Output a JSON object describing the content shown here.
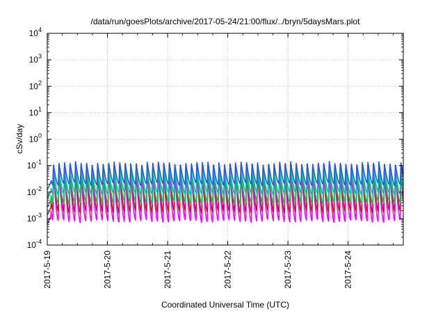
{
  "chart_data": {
    "type": "line",
    "title": "/data/run/goesPlots/archive/2017-05-24/21:00/flux/../bryn/5daysMars.plot",
    "xlabel": "Coordinated Universal Time (UTC)",
    "ylabel": "cSv/day",
    "yscale": "log",
    "ylim": [
      0.0001,
      10000
    ],
    "xlim": [
      "2017-05-19 00:00",
      "2017-05-24 22:00"
    ],
    "x_ticks": [
      "2017-5-19",
      "2017-5-20",
      "2017-5-21",
      "2017-5-22",
      "2017-5-23",
      "2017-5-24"
    ],
    "y_ticks": [
      {
        "base": "10",
        "exp": "-4",
        "value": 0.0001
      },
      {
        "base": "10",
        "exp": "-3",
        "value": 0.001
      },
      {
        "base": "10",
        "exp": "-2",
        "value": 0.01
      },
      {
        "base": "10",
        "exp": "-1",
        "value": 0.1
      },
      {
        "base": "10",
        "exp": "0",
        "value": 1
      },
      {
        "base": "10",
        "exp": "1",
        "value": 10
      },
      {
        "base": "10",
        "exp": "2",
        "value": 100
      },
      {
        "base": "10",
        "exp": "3",
        "value": 1000
      },
      {
        "base": "10",
        "exp": "4",
        "value": 10000
      }
    ],
    "grid": true,
    "sawtooth_period_hours": 2.2,
    "series": [
      {
        "color": "#ff00ff",
        "peak": 0.055,
        "trough": 0.0008
      },
      {
        "color": "#cc1133",
        "peak": 0.11,
        "trough": 0.0018
      },
      {
        "color": "#00cc44",
        "peak": 0.07,
        "trough": 0.004
      },
      {
        "color": "#00bbbb",
        "peak": 0.08,
        "trough": 0.009
      },
      {
        "color": "#2255ee",
        "peak": 0.13,
        "trough": 0.02
      }
    ]
  }
}
